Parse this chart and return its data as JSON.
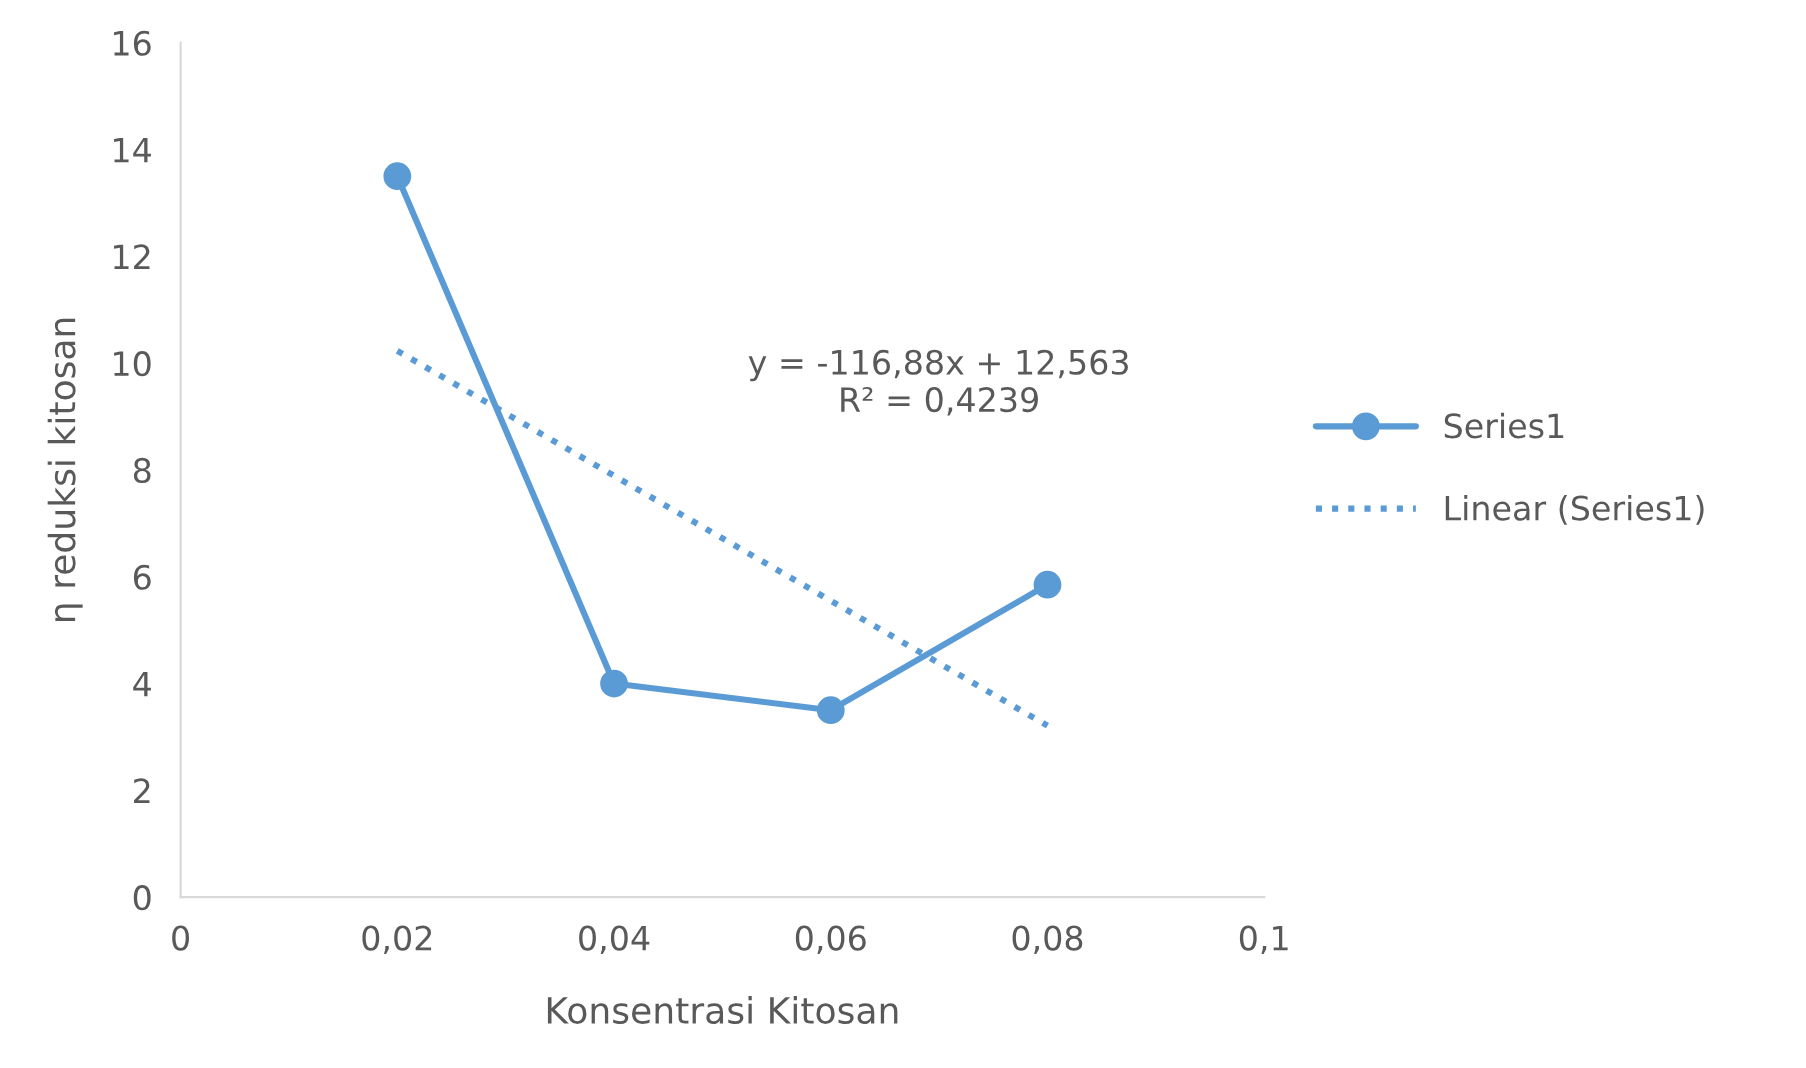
{
  "chart_data": {
    "type": "line",
    "xlabel": "Konsentrasi Kitosan",
    "ylabel": "η reduksi kitosan",
    "x": [
      0.02,
      0.04,
      0.06,
      0.08
    ],
    "series": [
      {
        "name": "Series1",
        "color": "#5b9bd5",
        "values": [
          13.5,
          4.0,
          3.5,
          5.85
        ],
        "marker": "circle",
        "line_style": "solid"
      },
      {
        "name": "Linear (Series1)",
        "color": "#5b9bd5",
        "x": [
          0.02,
          0.08
        ],
        "values": [
          10.23,
          3.21
        ],
        "marker": "none",
        "line_style": "dotted"
      }
    ],
    "annotations": [
      "y = -116,88x + 12,563\nR² = 0,4239"
    ],
    "xlim": [
      0,
      0.1
    ],
    "xticks": [
      {
        "value": 0,
        "label": "0"
      },
      {
        "value": 0.02,
        "label": "0,02"
      },
      {
        "value": 0.04,
        "label": "0,04"
      },
      {
        "value": 0.06,
        "label": "0,06"
      },
      {
        "value": 0.08,
        "label": "0,08"
      },
      {
        "value": 0.1,
        "label": "0,1"
      }
    ],
    "ylim": [
      0,
      16
    ],
    "yticks": [
      0,
      2,
      4,
      6,
      8,
      10,
      12,
      14,
      16
    ],
    "grid": false,
    "legend": "right"
  }
}
